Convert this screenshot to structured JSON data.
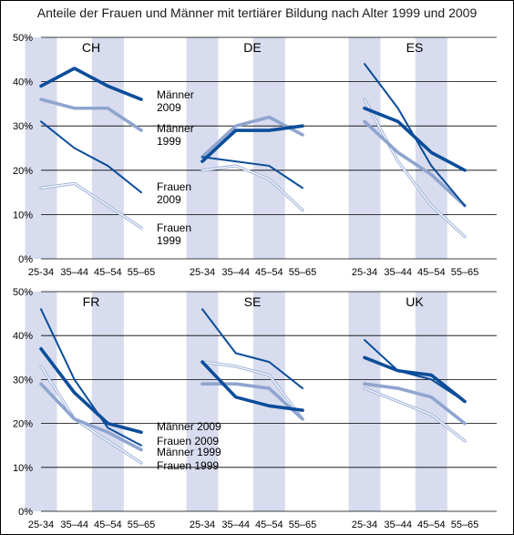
{
  "title": "Anteile der Frauen und Männer mit tertiärer Bildung nach Alter 1999 und 2009",
  "colors": {
    "maenner_2009": "#0b4d9a",
    "maenner_1999": "#8fa5cf",
    "frauen_2009": "#0b4d9a",
    "frauen_1999": "#9fb4d9",
    "band": "#d8dcee",
    "grid": "#000000"
  },
  "chart_data": {
    "type": "line",
    "categories": [
      "25-34",
      "35–44",
      "45–54",
      "55–65"
    ],
    "ylim": [
      0,
      50
    ],
    "yticks": [
      "0%",
      "10%",
      "20%",
      "30%",
      "40%",
      "50%"
    ],
    "grid": true,
    "panels": [
      {
        "name": "CH",
        "series": [
          {
            "name": "Männer 2009",
            "values": [
              39,
              43,
              39,
              36
            ]
          },
          {
            "name": "Männer 1999",
            "values": [
              36,
              34,
              34,
              29
            ]
          },
          {
            "name": "Frauen 2009",
            "values": [
              31,
              25,
              21,
              15
            ]
          },
          {
            "name": "Frauen 1999",
            "values": [
              16,
              17,
              12,
              7
            ]
          }
        ]
      },
      {
        "name": "DE",
        "series": [
          {
            "name": "Männer 2009",
            "values": [
              22,
              29,
              29,
              30
            ]
          },
          {
            "name": "Männer 1999",
            "values": [
              23,
              30,
              32,
              28
            ]
          },
          {
            "name": "Frauen 2009",
            "values": [
              23,
              22,
              21,
              16
            ]
          },
          {
            "name": "Frauen 1999",
            "values": [
              20,
              21,
              18,
              11
            ]
          }
        ]
      },
      {
        "name": "ES",
        "series": [
          {
            "name": "Männer 2009",
            "values": [
              34,
              31,
              24,
              20
            ]
          },
          {
            "name": "Männer 1999",
            "values": [
              31,
              24,
              19,
              12
            ]
          },
          {
            "name": "Frauen 2009",
            "values": [
              44,
              34,
              21,
              12
            ]
          },
          {
            "name": "Frauen 1999",
            "values": [
              36,
              22,
              12,
              5
            ]
          }
        ]
      },
      {
        "name": "FR",
        "series": [
          {
            "name": "Männer 2009",
            "values": [
              37,
              27,
              20,
              18
            ]
          },
          {
            "name": "Männer 1999",
            "values": [
              29,
              21,
              18,
              14
            ]
          },
          {
            "name": "Frauen 2009",
            "values": [
              46,
              30,
              19,
              15
            ]
          },
          {
            "name": "Frauen 1999",
            "values": [
              33,
              21,
              16,
              11
            ]
          }
        ]
      },
      {
        "name": "SE",
        "series": [
          {
            "name": "Männer 2009",
            "values": [
              34,
              26,
              24,
              23
            ]
          },
          {
            "name": "Männer 1999",
            "values": [
              29,
              29,
              28,
              21
            ]
          },
          {
            "name": "Frauen 2009",
            "values": [
              46,
              36,
              34,
              28
            ]
          },
          {
            "name": "Frauen 1999",
            "values": [
              34,
              33,
              31,
              21
            ]
          }
        ]
      },
      {
        "name": "UK",
        "series": [
          {
            "name": "Männer 2009",
            "values": [
              35,
              32,
              31,
              25
            ]
          },
          {
            "name": "Männer 1999",
            "values": [
              29,
              28,
              26,
              20
            ]
          },
          {
            "name": "Frauen 2009",
            "values": [
              39,
              32,
              30,
              25
            ]
          },
          {
            "name": "Frauen 1999",
            "values": [
              28,
              25,
              22,
              16
            ]
          }
        ]
      }
    ],
    "annotations": {
      "CH": [
        "Männer",
        "2009",
        "Männer",
        "1999",
        "Frauen",
        "2009",
        "Frauen",
        "1999"
      ],
      "FR": [
        "Männer 2009",
        "Frauen 2009",
        "Männer 1999",
        "Frauen 1999"
      ]
    }
  }
}
